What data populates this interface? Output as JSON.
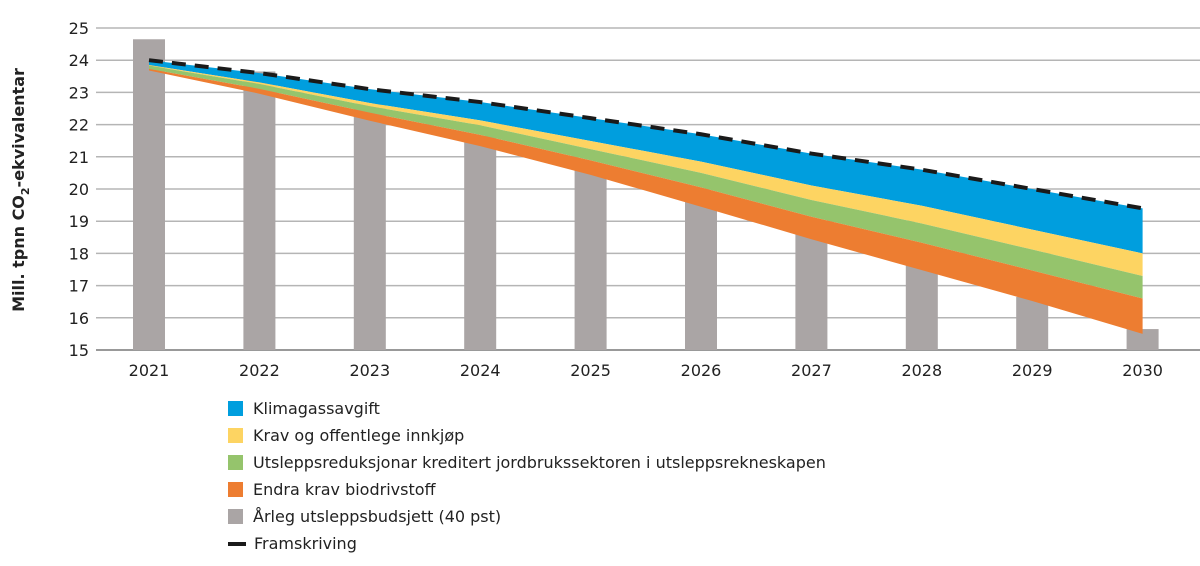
{
  "chart_data": {
    "type": "area",
    "ylabel": "Mill. tpnn CO2-ekvivalentar",
    "ylabel_main": "Mill. tpnn CO",
    "ylabel_sub": "2",
    "ylabel_rest": "-ekvivalentar",
    "ylim": [
      15,
      25
    ],
    "yticks": [
      15,
      16,
      17,
      18,
      19,
      20,
      21,
      22,
      23,
      24,
      25
    ],
    "grid": true,
    "legend_position": "bottom-left",
    "categories": [
      "2021",
      "2022",
      "2023",
      "2024",
      "2025",
      "2026",
      "2027",
      "2028",
      "2029",
      "2030"
    ],
    "bars": {
      "name": "Årleg utsleppsbudsjett (40 pst)",
      "color": "#aaa5a5",
      "values": [
        24.65,
        23.65,
        22.65,
        21.65,
        20.65,
        19.65,
        18.65,
        17.65,
        16.65,
        15.65
      ]
    },
    "line": {
      "name": "Framskriving",
      "color": "#1a1a1a",
      "values": [
        24.0,
        23.6,
        23.1,
        22.7,
        22.2,
        21.7,
        21.1,
        20.6,
        20.0,
        19.4
      ]
    },
    "reductions": [
      {
        "name": "Klimagassavgift",
        "color": "#009ede",
        "values": [
          0.15,
          0.29,
          0.43,
          0.57,
          0.71,
          0.85,
          0.99,
          1.12,
          1.26,
          1.4
        ]
      },
      {
        "name": "Krav og offentlege innkjøp",
        "color": "#fdd462",
        "values": [
          0.02,
          0.05,
          0.1,
          0.15,
          0.25,
          0.35,
          0.45,
          0.55,
          0.62,
          0.7
        ]
      },
      {
        "name": "Utsleppsreduksjonar kreditert jordbrukssektoren i utsleppsrekneskapen",
        "color": "#95c46c",
        "values": [
          0.1,
          0.15,
          0.2,
          0.3,
          0.35,
          0.45,
          0.52,
          0.6,
          0.65,
          0.7
        ]
      },
      {
        "name": "Endra krav biodrivstoff",
        "color": "#ed7d31",
        "values": [
          0.05,
          0.15,
          0.25,
          0.35,
          0.45,
          0.6,
          0.7,
          0.85,
          0.95,
          1.1
        ]
      }
    ]
  }
}
